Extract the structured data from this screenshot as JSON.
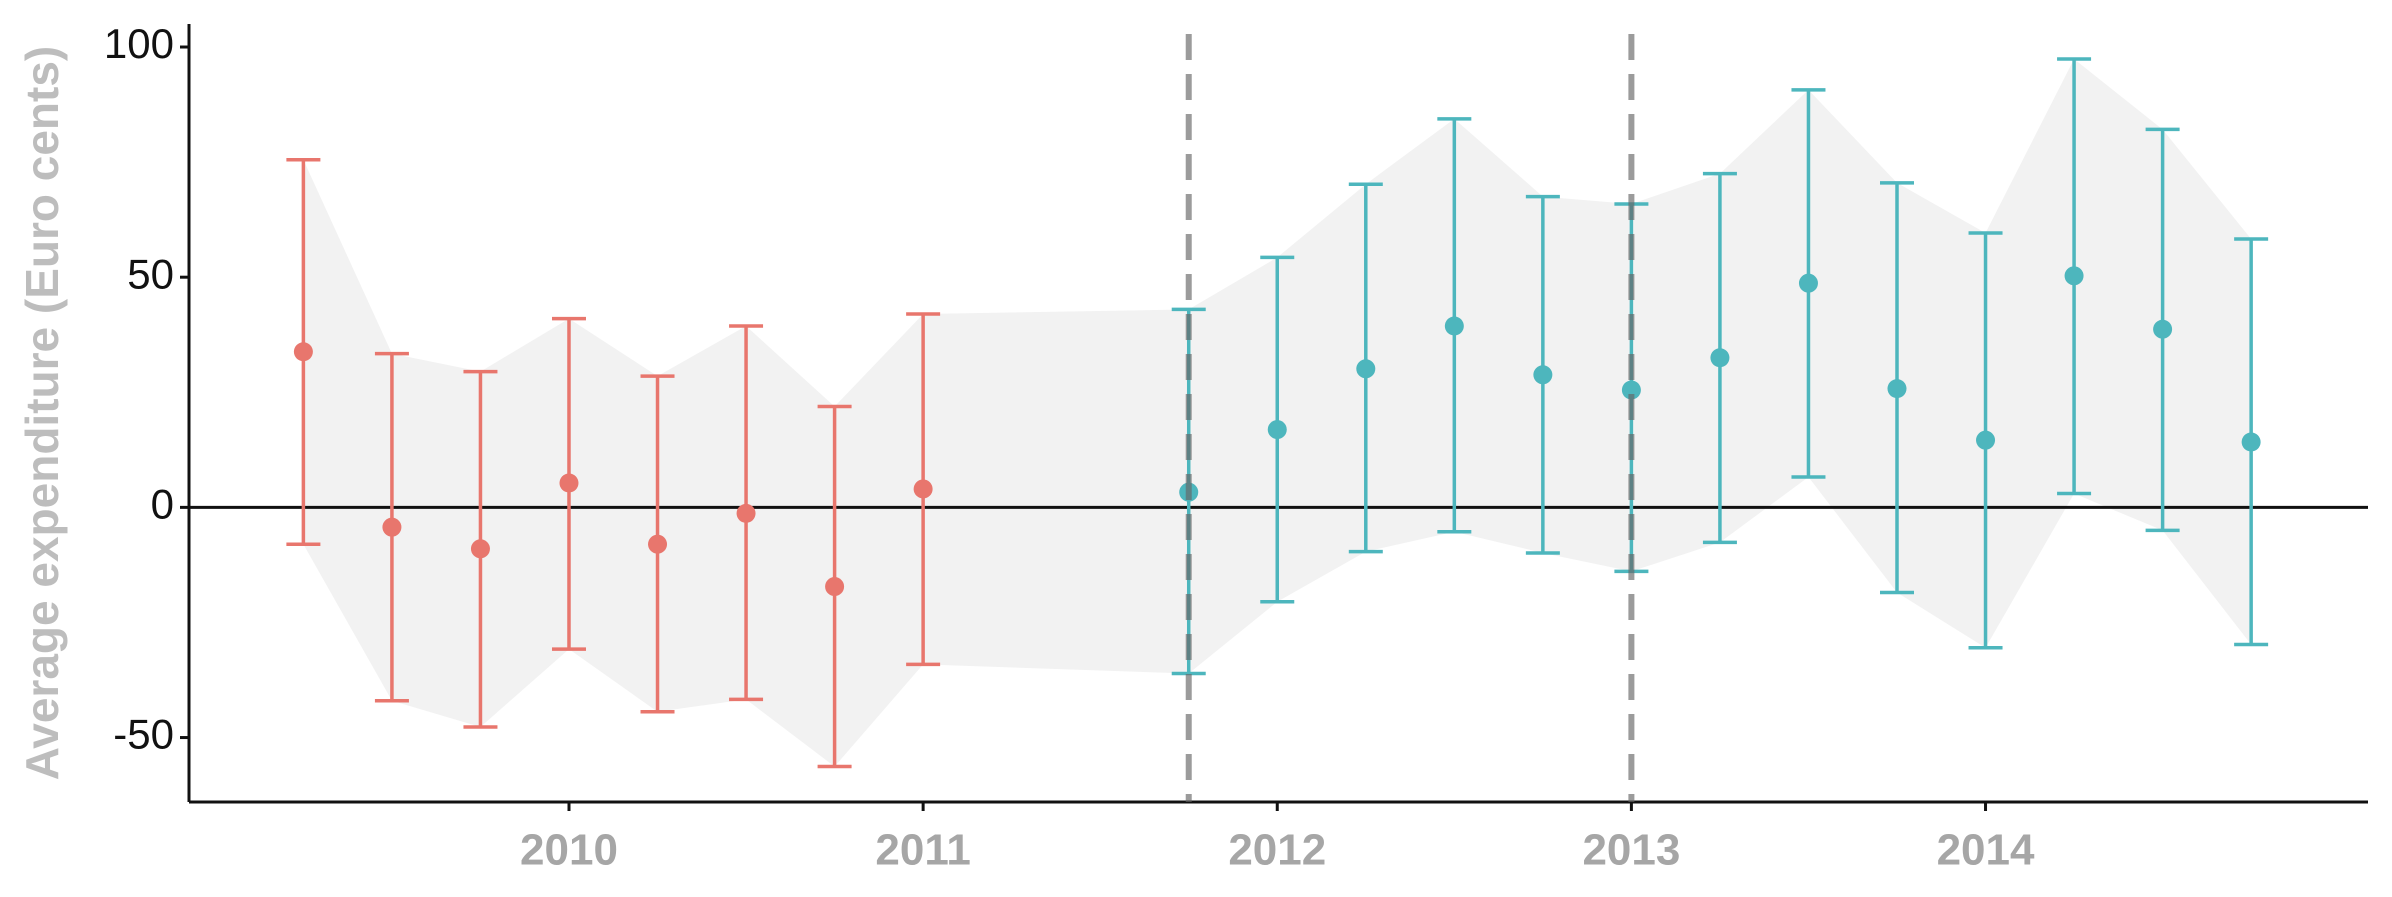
{
  "chart_data": {
    "type": "errorbar",
    "y_label": "Average expenditure (Euro cents)",
    "xlim": [
      2008.927,
      2015.08
    ],
    "xticks": [
      2010,
      2011,
      2012,
      2013,
      2014
    ],
    "ylim": [
      -64,
      105
    ],
    "yticks": [
      -50,
      0,
      50,
      100
    ],
    "vlines": [
      2011.75,
      2013
    ],
    "hline": 0,
    "ribbon_color": "#f2f2f2",
    "series": [
      {
        "color": "#e8766d",
        "x": [
          2009.25,
          2009.5,
          2009.75,
          2010,
          2010.25,
          2010.5,
          2010.75,
          2011
        ],
        "values": [
          33.8,
          -4.3,
          -9,
          5.3,
          -8,
          -1.3,
          -17.2,
          4
        ],
        "upper": [
          75.5,
          33.4,
          29.5,
          41,
          28.5,
          39.4,
          21.9,
          42
        ],
        "lower": [
          -8,
          -42,
          -47.7,
          -30.8,
          -44.4,
          -41.7,
          -56.3,
          -34.1
        ]
      },
      {
        "color": "#4db6bd",
        "x": [
          2011.75,
          2012,
          2012.25,
          2012.5,
          2012.75,
          2013,
          2013.25,
          2013.5,
          2013.75,
          2014,
          2014.25,
          2014.5,
          2014.75
        ],
        "values": [
          3.3,
          16.9,
          30.1,
          39.4,
          28.8,
          25.5,
          32.5,
          48.7,
          25.8,
          14.6,
          50.3,
          38.7,
          14.2
        ],
        "upper": [
          43,
          54.3,
          70.2,
          84.4,
          67.5,
          65.9,
          72.5,
          90.7,
          70.5,
          59.6,
          97.4,
          82.1,
          58.3
        ],
        "lower": [
          -36.1,
          -20.5,
          -9.6,
          -5.3,
          -9.9,
          -13.9,
          -7.6,
          6.6,
          -18.5,
          -30.5,
          3,
          -5,
          -29.8
        ]
      }
    ]
  }
}
